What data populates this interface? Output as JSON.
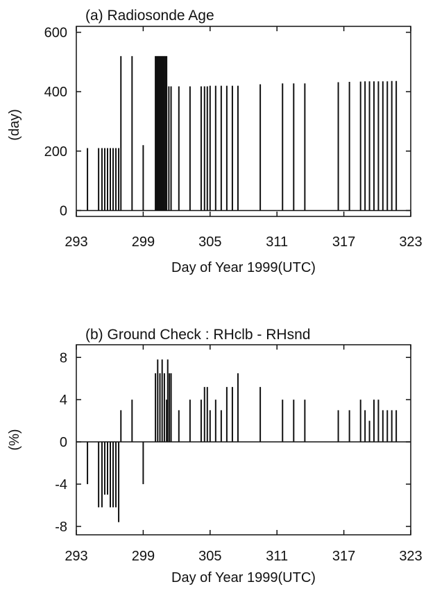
{
  "chart_data": [
    {
      "type": "bar",
      "title": "(a) Radiosonde Age",
      "xlabel": "Day of Year 1999(UTC)",
      "ylabel": "(day)",
      "xlim": [
        293,
        323
      ],
      "ylim": [
        -20,
        620
      ],
      "xticks": [
        "293",
        "299",
        "305",
        "311",
        "317",
        "323"
      ],
      "yticks": [
        "0",
        "200",
        "400",
        "600"
      ],
      "x": [
        294.0,
        295.0,
        295.3,
        295.55,
        295.8,
        296.05,
        296.3,
        296.55,
        296.8,
        297.0,
        298.0,
        299.0,
        300.1,
        300.2,
        300.3,
        300.4,
        300.5,
        300.6,
        300.7,
        300.8,
        300.9,
        301.0,
        301.1,
        301.3,
        301.5,
        302.2,
        303.2,
        304.2,
        304.5,
        304.75,
        305.0,
        305.5,
        306.0,
        306.5,
        307.0,
        307.5,
        309.5,
        311.5,
        312.5,
        313.5,
        316.5,
        317.5,
        318.5,
        318.9,
        319.3,
        319.7,
        320.1,
        320.5,
        320.9,
        321.3,
        321.7
      ],
      "values": [
        210,
        210,
        210,
        210,
        210,
        210,
        210,
        210,
        210,
        520,
        520,
        220,
        520,
        520,
        520,
        520,
        520,
        520,
        520,
        520,
        520,
        520,
        520,
        418,
        418,
        418,
        418,
        418,
        418,
        418,
        420,
        420,
        420,
        420,
        420,
        420,
        425,
        428,
        428,
        428,
        432,
        433,
        434,
        435,
        435,
        435,
        435,
        435,
        435,
        436,
        436
      ],
      "grid": false
    },
    {
      "type": "bar",
      "title": "(b) Ground Check : RHclb - RHsnd",
      "xlabel": "Day of Year 1999(UTC)",
      "ylabel": "(%)",
      "xlim": [
        293,
        323
      ],
      "ylim": [
        -8.8,
        9.2
      ],
      "xticks": [
        "293",
        "299",
        "305",
        "311",
        "317",
        "323"
      ],
      "yticks": [
        "8",
        "4",
        "0",
        "-4",
        "-8"
      ],
      "x": [
        294.0,
        295.0,
        295.3,
        295.55,
        295.8,
        296.05,
        296.3,
        296.55,
        296.8,
        297.0,
        298.0,
        299.0,
        300.1,
        300.3,
        300.5,
        300.7,
        300.9,
        301.1,
        301.2,
        301.35,
        301.5,
        302.2,
        303.2,
        304.2,
        304.5,
        304.75,
        305.0,
        305.5,
        306.0,
        306.5,
        307.0,
        307.5,
        309.5,
        311.5,
        312.5,
        313.5,
        316.5,
        317.5,
        318.5,
        318.9,
        319.3,
        319.7,
        320.1,
        320.5,
        320.9,
        321.3,
        321.7
      ],
      "values": [
        -4.0,
        -6.2,
        -6.2,
        -5.0,
        -5.0,
        -6.2,
        -6.2,
        -6.2,
        -7.6,
        3.0,
        4.0,
        -4.0,
        6.5,
        7.8,
        6.5,
        7.8,
        6.5,
        4.0,
        7.8,
        6.5,
        6.5,
        3.0,
        4.0,
        4.0,
        5.2,
        5.2,
        3.0,
        4.0,
        3.0,
        5.2,
        5.2,
        6.5,
        5.2,
        4.0,
        4.0,
        4.0,
        3.0,
        3.0,
        4.0,
        3.0,
        2.0,
        4.0,
        4.0,
        3.0,
        3.0,
        3.0,
        3.0
      ],
      "grid": false
    }
  ]
}
